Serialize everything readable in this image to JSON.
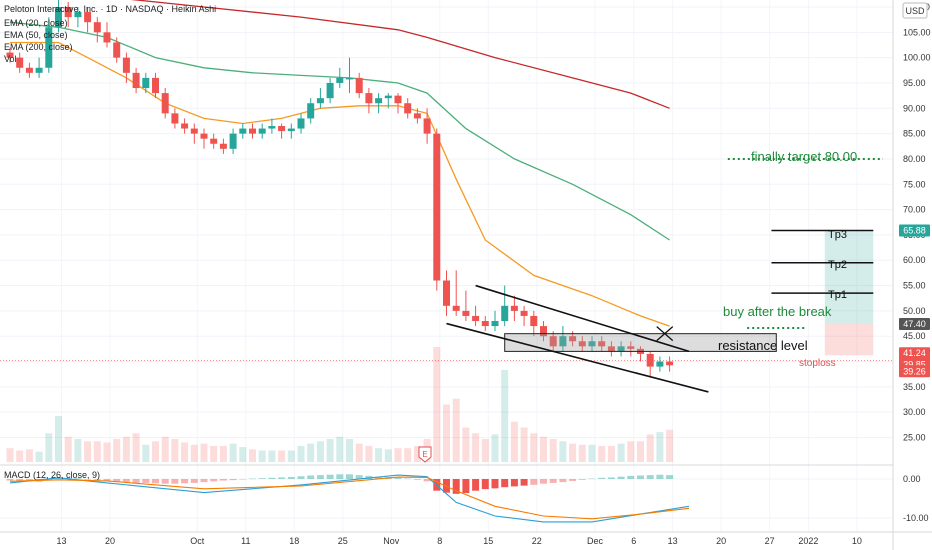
{
  "header": {
    "title": "Peloton Interactive, Inc. · 1D · NASDAQ · Heikin Ashi",
    "currency": "USD"
  },
  "legend": [
    "EMA (20, close)",
    "EMA (50, close)",
    "EMA (200, close)",
    "Vol"
  ],
  "macd_label": "MACD (12, 26, close, 9)",
  "earnings_marker": "E",
  "annotations": {
    "finally_target": "finally target 80.00",
    "buy_after_break": "buy after the break",
    "resistance": "resistance level",
    "stoploss": "stoploss",
    "tp1": "Tp1",
    "tp2": "Tp2",
    "tp3": "Tp3"
  },
  "badges": [
    {
      "value": "65.88",
      "color": "#26a69a"
    },
    {
      "value": "47.40",
      "color": "#555555"
    },
    {
      "value": "41.24",
      "color": "#ef5350"
    },
    {
      "value": "39.85",
      "color": "#ef5350"
    },
    {
      "value": "39.26",
      "color": "#ef5350"
    }
  ],
  "colors": {
    "up": "#26a69a",
    "down": "#ef5350",
    "ema20": "#f59a23",
    "ema50": "#4caf7a",
    "ema200": "#c62828",
    "macd_line": "#2a9fd6",
    "signal_line": "#f57c00"
  },
  "chart_data": {
    "type": "candlestick",
    "y_axis": {
      "range": [
        20,
        110
      ],
      "ticks": [
        "110.00",
        "105.00",
        "100.00",
        "95.00",
        "90.00",
        "85.00",
        "80.00",
        "75.00",
        "70.00",
        "65.00",
        "60.00",
        "55.00",
        "50.00",
        "45.00",
        "40.00",
        "35.00",
        "30.00",
        "25.00"
      ]
    },
    "macd_axis": {
      "range": [
        -12,
        3
      ],
      "ticks": [
        "0.00",
        "-10.00"
      ]
    },
    "x_axis_ticks": [
      {
        "label": "13",
        "i": 5
      },
      {
        "label": "20",
        "i": 10
      },
      {
        "label": "Oct",
        "i": 19
      },
      {
        "label": "11",
        "i": 24
      },
      {
        "label": "18",
        "i": 29
      },
      {
        "label": "25",
        "i": 34
      },
      {
        "label": "Nov",
        "i": 39
      },
      {
        "label": "8",
        "i": 44
      },
      {
        "label": "15",
        "i": 49
      },
      {
        "label": "22",
        "i": 54
      },
      {
        "label": "Dec",
        "i": 60
      },
      {
        "label": "6",
        "i": 64
      },
      {
        "label": "13",
        "i": 68
      },
      {
        "label": "20",
        "i": 73
      },
      {
        "label": "27",
        "i": 78
      },
      {
        "label": "2022",
        "i": 82
      },
      {
        "label": "10",
        "i": 87
      }
    ],
    "candles": [
      {
        "o": 101,
        "c": 100,
        "h": 102,
        "l": 99,
        "v": 12
      },
      {
        "o": 100,
        "c": 98,
        "h": 101,
        "l": 97,
        "v": 10
      },
      {
        "o": 98,
        "c": 97,
        "h": 99,
        "l": 96,
        "v": 11
      },
      {
        "o": 97,
        "c": 98,
        "h": 100,
        "l": 96,
        "v": 9
      },
      {
        "o": 98,
        "c": 106,
        "h": 108,
        "l": 97,
        "v": 25
      },
      {
        "o": 106,
        "c": 110,
        "h": 112,
        "l": 105,
        "v": 40
      },
      {
        "o": 110,
        "c": 108,
        "h": 111,
        "l": 106,
        "v": 22
      },
      {
        "o": 108,
        "c": 109,
        "h": 110,
        "l": 106,
        "v": 20
      },
      {
        "o": 109,
        "c": 107,
        "h": 110,
        "l": 105,
        "v": 18
      },
      {
        "o": 107,
        "c": 105,
        "h": 108,
        "l": 103,
        "v": 18
      },
      {
        "o": 105,
        "c": 103,
        "h": 107,
        "l": 102,
        "v": 17
      },
      {
        "o": 103,
        "c": 100,
        "h": 104,
        "l": 99,
        "v": 20
      },
      {
        "o": 100,
        "c": 97,
        "h": 101,
        "l": 95,
        "v": 22
      },
      {
        "o": 97,
        "c": 94,
        "h": 98,
        "l": 93,
        "v": 25
      },
      {
        "o": 94,
        "c": 96,
        "h": 97,
        "l": 93,
        "v": 15
      },
      {
        "o": 96,
        "c": 93,
        "h": 97,
        "l": 92,
        "v": 18
      },
      {
        "o": 93,
        "c": 89,
        "h": 94,
        "l": 88,
        "v": 22
      },
      {
        "o": 89,
        "c": 87,
        "h": 90,
        "l": 86,
        "v": 20
      },
      {
        "o": 87,
        "c": 86,
        "h": 88,
        "l": 85,
        "v": 17
      },
      {
        "o": 86,
        "c": 85,
        "h": 87,
        "l": 83,
        "v": 15
      },
      {
        "o": 85,
        "c": 84,
        "h": 86,
        "l": 82,
        "v": 16
      },
      {
        "o": 84,
        "c": 83,
        "h": 85,
        "l": 82,
        "v": 14
      },
      {
        "o": 83,
        "c": 82,
        "h": 84,
        "l": 81,
        "v": 14
      },
      {
        "o": 82,
        "c": 85,
        "h": 86,
        "l": 81,
        "v": 16
      },
      {
        "o": 85,
        "c": 86,
        "h": 87,
        "l": 84,
        "v": 13
      },
      {
        "o": 86,
        "c": 85,
        "h": 87,
        "l": 84,
        "v": 11
      },
      {
        "o": 85,
        "c": 86,
        "h": 87,
        "l": 84,
        "v": 10
      },
      {
        "o": 86,
        "c": 86.5,
        "h": 88,
        "l": 85,
        "v": 10
      },
      {
        "o": 86.5,
        "c": 85.5,
        "h": 87,
        "l": 84,
        "v": 10
      },
      {
        "o": 85.5,
        "c": 86,
        "h": 87,
        "l": 84,
        "v": 10
      },
      {
        "o": 86,
        "c": 88,
        "h": 89,
        "l": 85,
        "v": 14
      },
      {
        "o": 88,
        "c": 91,
        "h": 92,
        "l": 87,
        "v": 16
      },
      {
        "o": 91,
        "c": 92,
        "h": 94,
        "l": 90,
        "v": 18
      },
      {
        "o": 92,
        "c": 95,
        "h": 96,
        "l": 91,
        "v": 20
      },
      {
        "o": 95,
        "c": 96,
        "h": 98,
        "l": 94,
        "v": 22
      },
      {
        "o": 96,
        "c": 96,
        "h": 100,
        "l": 93,
        "v": 20
      },
      {
        "o": 96,
        "c": 93,
        "h": 97,
        "l": 92,
        "v": 16
      },
      {
        "o": 93,
        "c": 91,
        "h": 94,
        "l": 89,
        "v": 14
      },
      {
        "o": 91,
        "c": 92,
        "h": 93,
        "l": 89,
        "v": 12
      },
      {
        "o": 92,
        "c": 92.5,
        "h": 93,
        "l": 90,
        "v": 11
      },
      {
        "o": 92.5,
        "c": 91,
        "h": 93,
        "l": 89,
        "v": 12
      },
      {
        "o": 91,
        "c": 89,
        "h": 92,
        "l": 88,
        "v": 12
      },
      {
        "o": 89,
        "c": 88,
        "h": 90,
        "l": 87,
        "v": 14
      },
      {
        "o": 88,
        "c": 85,
        "h": 90,
        "l": 83,
        "v": 20
      },
      {
        "o": 85,
        "c": 56,
        "h": 86,
        "l": 54,
        "v": 100
      },
      {
        "o": 56,
        "c": 51,
        "h": 58,
        "l": 49,
        "v": 50
      },
      {
        "o": 51,
        "c": 50,
        "h": 58,
        "l": 49,
        "v": 55
      },
      {
        "o": 50,
        "c": 49,
        "h": 54,
        "l": 48,
        "v": 30
      },
      {
        "o": 49,
        "c": 48,
        "h": 51,
        "l": 47,
        "v": 25
      },
      {
        "o": 48,
        "c": 47,
        "h": 49,
        "l": 46,
        "v": 20
      },
      {
        "o": 47,
        "c": 48,
        "h": 50,
        "l": 46,
        "v": 24
      },
      {
        "o": 48,
        "c": 51,
        "h": 55,
        "l": 47,
        "v": 80
      },
      {
        "o": 51,
        "c": 50,
        "h": 53,
        "l": 48,
        "v": 35
      },
      {
        "o": 50,
        "c": 49,
        "h": 51,
        "l": 47,
        "v": 30
      },
      {
        "o": 49,
        "c": 47,
        "h": 50,
        "l": 45,
        "v": 25
      },
      {
        "o": 47,
        "c": 45,
        "h": 48,
        "l": 44,
        "v": 22
      },
      {
        "o": 45,
        "c": 43,
        "h": 46,
        "l": 42,
        "v": 20
      },
      {
        "o": 43,
        "c": 45,
        "h": 47,
        "l": 42,
        "v": 18
      },
      {
        "o": 45,
        "c": 44,
        "h": 46,
        "l": 43,
        "v": 16
      },
      {
        "o": 44,
        "c": 43,
        "h": 45,
        "l": 42,
        "v": 15
      },
      {
        "o": 43,
        "c": 44,
        "h": 45,
        "l": 42,
        "v": 15
      },
      {
        "o": 44,
        "c": 43,
        "h": 45,
        "l": 42,
        "v": 14
      },
      {
        "o": 43,
        "c": 42,
        "h": 44,
        "l": 41,
        "v": 14
      },
      {
        "o": 42,
        "c": 43,
        "h": 44,
        "l": 41,
        "v": 16
      },
      {
        "o": 43,
        "c": 42.5,
        "h": 44,
        "l": 41,
        "v": 18
      },
      {
        "o": 42.5,
        "c": 41.5,
        "h": 43,
        "l": 40,
        "v": 18
      },
      {
        "o": 41.5,
        "c": 39,
        "h": 42,
        "l": 37,
        "v": 24
      },
      {
        "o": 39,
        "c": 40,
        "h": 41,
        "l": 38,
        "v": 26
      },
      {
        "o": 40,
        "c": 39.26,
        "h": 41,
        "l": 38,
        "v": 28
      }
    ],
    "ema20": [
      [
        0,
        103
      ],
      [
        5,
        103
      ],
      [
        8,
        100
      ],
      [
        12,
        96
      ],
      [
        16,
        91
      ],
      [
        20,
        88
      ],
      [
        24,
        87
      ],
      [
        28,
        88
      ],
      [
        32,
        90
      ],
      [
        36,
        90.5
      ],
      [
        40,
        90.5
      ],
      [
        43,
        89
      ],
      [
        46,
        76
      ],
      [
        49,
        64
      ],
      [
        54,
        57
      ],
      [
        60,
        53
      ],
      [
        65,
        49
      ],
      [
        68,
        47
      ]
    ],
    "ema50": [
      [
        0,
        107
      ],
      [
        5,
        106
      ],
      [
        10,
        104
      ],
      [
        15,
        100
      ],
      [
        20,
        98
      ],
      [
        25,
        97
      ],
      [
        30,
        96.5
      ],
      [
        35,
        96
      ],
      [
        40,
        95
      ],
      [
        43,
        93
      ],
      [
        47,
        86
      ],
      [
        52,
        80
      ],
      [
        58,
        75
      ],
      [
        64,
        69
      ],
      [
        68,
        64
      ]
    ],
    "ema200": [
      [
        0,
        114
      ],
      [
        10,
        112
      ],
      [
        20,
        110
      ],
      [
        30,
        108
      ],
      [
        40,
        105.5
      ],
      [
        43,
        104
      ],
      [
        50,
        100
      ],
      [
        58,
        96
      ],
      [
        64,
        93
      ],
      [
        68,
        90
      ]
    ],
    "channel_upper": [
      [
        48,
        55
      ],
      [
        70,
        42
      ]
    ],
    "channel_lower": [
      [
        45,
        47.5
      ],
      [
        72,
        34
      ]
    ],
    "resistance_zone": {
      "x_start": 51,
      "x_end": 79,
      "y_low": 42,
      "y_high": 45.5
    },
    "target_line": {
      "value": 80,
      "x_start": 74,
      "x_end": 90
    },
    "buy_line": {
      "value": 47.4,
      "x_start": 76,
      "x_end": 82
    },
    "take_profit": [
      {
        "name": "Tp1",
        "value": 53.5
      },
      {
        "name": "Tp2",
        "value": 59.5
      },
      {
        "name": "Tp3",
        "value": 65.88
      }
    ],
    "position": {
      "entry": 47.4,
      "target": 65.88,
      "stop": 41.24,
      "x_start": 84,
      "x_end": 89
    },
    "stoploss_value": 40.2,
    "macd_hist": [
      -0.4,
      -0.5,
      -0.6,
      -0.7,
      -0.3,
      0.2,
      0.3,
      0.2,
      0,
      -0.2,
      -0.4,
      -0.6,
      -0.8,
      -1.0,
      -1.0,
      -1.1,
      -1.2,
      -1.2,
      -1.1,
      -1.0,
      -0.8,
      -0.6,
      -0.4,
      -0.3,
      -0.1,
      0.1,
      0.2,
      0.3,
      0.4,
      0.5,
      0.7,
      0.9,
      1.0,
      1.1,
      1.2,
      1.2,
      1.0,
      0.8,
      0.6,
      0.5,
      0.3,
      0.1,
      -0.2,
      -0.6,
      -3.0,
      -3.5,
      -3.8,
      -3.6,
      -3.0,
      -2.6,
      -2.4,
      -2.1,
      -1.9,
      -1.7,
      -1.5,
      -1.2,
      -1.0,
      -0.8,
      -0.5,
      -0.2,
      0.1,
      0.3,
      0.4,
      0.6,
      0.8,
      0.9,
      1.0,
      1.1,
      1.0
    ],
    "macd_line": [
      [
        0,
        -1.0
      ],
      [
        5,
        0.3
      ],
      [
        10,
        -1.0
      ],
      [
        20,
        -3.5
      ],
      [
        30,
        -1.5
      ],
      [
        40,
        1.0
      ],
      [
        43,
        0.6
      ],
      [
        46,
        -6
      ],
      [
        50,
        -9.5
      ],
      [
        55,
        -11
      ],
      [
        60,
        -11
      ],
      [
        65,
        -9
      ],
      [
        70,
        -7
      ]
    ],
    "signal_line": [
      [
        0,
        -0.6
      ],
      [
        5,
        -0.2
      ],
      [
        10,
        -0.5
      ],
      [
        20,
        -2.5
      ],
      [
        30,
        -1.8
      ],
      [
        40,
        0.5
      ],
      [
        43,
        0.4
      ],
      [
        46,
        -3
      ],
      [
        50,
        -7
      ],
      [
        55,
        -9.5
      ],
      [
        60,
        -10.2
      ],
      [
        65,
        -9
      ],
      [
        70,
        -7.5
      ]
    ]
  }
}
